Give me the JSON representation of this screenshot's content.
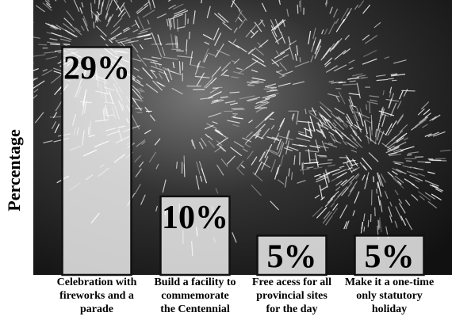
{
  "chart_data": {
    "type": "bar",
    "y_label": "Percentage",
    "categories": [
      "Celebration with\nfireworks and a\nparade",
      "Build a facility to\ncommemorate\nthe Centennial",
      "Free acess for all\nprovincial sites\nfor the day",
      "Make it a one-time\nonly statutory\nholiday"
    ],
    "values": [
      29,
      10,
      5,
      5
    ],
    "value_labels": [
      "29%",
      "10%",
      "5%",
      "5%"
    ],
    "ylim": [
      0,
      35
    ]
  }
}
